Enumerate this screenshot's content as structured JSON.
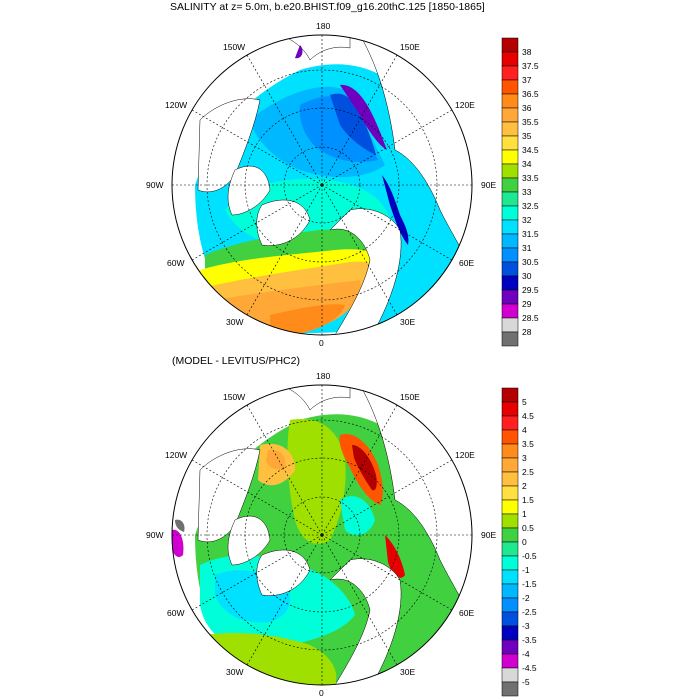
{
  "top_panel": {
    "title": "SALINITY at z=   5.0m, b.e20.BHIST.f09_g16.20thC.125 [1850-1865]",
    "longitude_labels": [
      "180",
      "150E",
      "120E",
      "90E",
      "60E",
      "30E",
      "0",
      "30W",
      "60W",
      "90W",
      "120W",
      "150W"
    ],
    "colorbar": {
      "labels": [
        "38",
        "37.5",
        "37",
        "36.5",
        "36",
        "35.5",
        "35",
        "34.5",
        "34",
        "33.5",
        "33",
        "32.5",
        "32",
        "31.5",
        "31",
        "30.5",
        "30",
        "29.5",
        "29",
        "28.5",
        "28"
      ],
      "colors": [
        "#b40000",
        "#e60000",
        "#ff2020",
        "#ff5500",
        "#ff8c1a",
        "#ffa838",
        "#ffc040",
        "#ffe040",
        "#ffff00",
        "#a0e000",
        "#40d040",
        "#20e890",
        "#00ffd8",
        "#00e0ff",
        "#00b8ff",
        "#0090ff",
        "#0050e0",
        "#0000c0",
        "#7000c0",
        "#d000d0",
        "#d8d8d8",
        "#707070"
      ]
    }
  },
  "bottom_panel": {
    "title": "(MODEL - LEVITUS/PHC2)",
    "longitude_labels": [
      "180",
      "150E",
      "120E",
      "90E",
      "60E",
      "30E",
      "0",
      "30W",
      "60W",
      "90W",
      "120W",
      "150W"
    ],
    "colorbar": {
      "labels": [
        "5",
        "4.5",
        "4",
        "3.5",
        "3",
        "2.5",
        "2",
        "1.5",
        "1",
        "0.5",
        "0",
        "-0.5",
        "-1",
        "-1.5",
        "-2",
        "-2.5",
        "-3",
        "-3.5",
        "-4",
        "-4.5",
        "-5"
      ],
      "colors": [
        "#b40000",
        "#e60000",
        "#ff2020",
        "#ff5500",
        "#ff8c1a",
        "#ffa838",
        "#ffc040",
        "#ffe040",
        "#ffff00",
        "#a0e000",
        "#40d040",
        "#20e890",
        "#00ffd8",
        "#00e0ff",
        "#00b8ff",
        "#0090ff",
        "#0050e0",
        "#0000c0",
        "#7000c0",
        "#d000d0",
        "#d8d8d8",
        "#707070"
      ]
    }
  }
}
